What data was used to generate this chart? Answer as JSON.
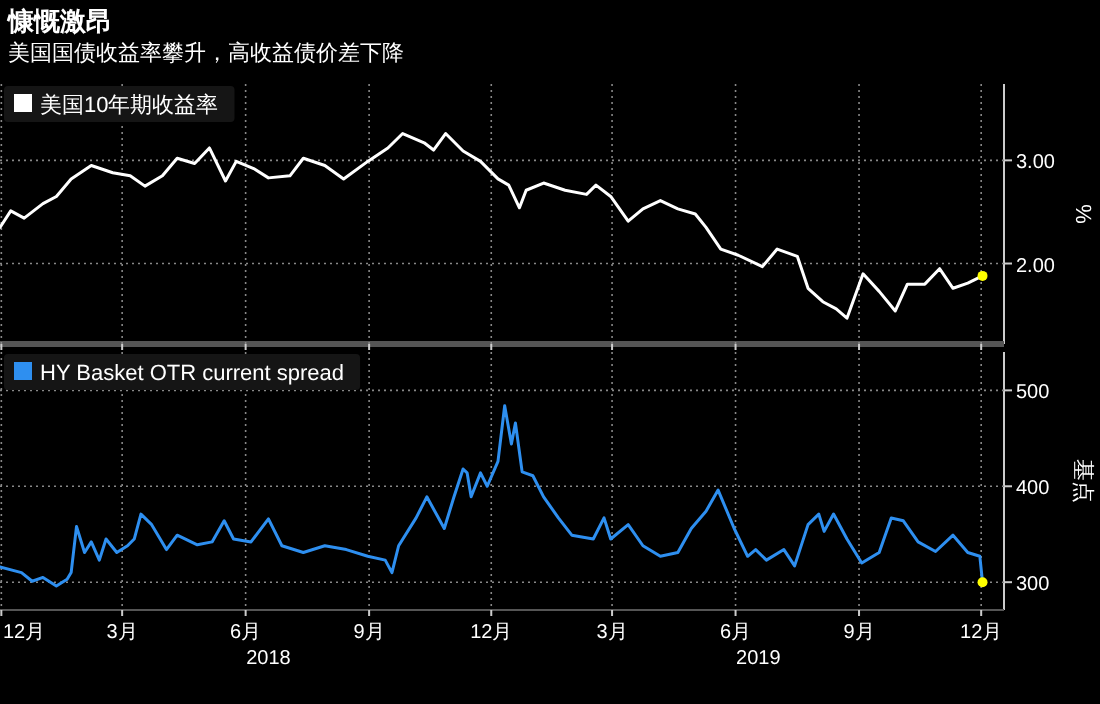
{
  "chart_data": [
    {
      "type": "line",
      "title": "慷慨激昂",
      "subtitle": "美国国债收益率攀升，高收益债价差下降",
      "legend": "top left",
      "grid": true,
      "tick_labels": "y",
      "ylabel": "%",
      "xlim": [
        "2017-12-14",
        "2020-01-01"
      ],
      "xticks": [
        {
          "value": "2017-12-15",
          "label": null
        },
        {
          "value": "2018-03-15",
          "label": null
        },
        {
          "value": "2018-06-15",
          "label": null
        },
        {
          "value": "2018-09-15",
          "label": null
        },
        {
          "value": "2018-12-15",
          "label": null
        },
        {
          "value": "2019-03-15",
          "label": null
        },
        {
          "value": "2019-06-15",
          "label": null
        },
        {
          "value": "2019-09-15",
          "label": null
        },
        {
          "value": "2019-12-15",
          "label": null
        }
      ],
      "ylim": [
        1.22,
        3.74
      ],
      "yticks": [
        {
          "value": 3,
          "label": "3.00"
        },
        {
          "value": 2,
          "label": "2.00"
        }
      ],
      "series": [
        {
          "name": "美国10年期收益率",
          "color": "#ffffff",
          "x": [
            "2017-12-14",
            "2017-12-22",
            "2018-01-01",
            "2018-01-15",
            "2018-01-25",
            "2018-02-05",
            "2018-02-20",
            "2018-03-08",
            "2018-03-21",
            "2018-04-01",
            "2018-04-14",
            "2018-04-25",
            "2018-05-08",
            "2018-05-19",
            "2018-05-31",
            "2018-06-08",
            "2018-06-21",
            "2018-07-02",
            "2018-07-18",
            "2018-07-28",
            "2018-08-13",
            "2018-08-27",
            "2018-09-14",
            "2018-09-29",
            "2018-10-10",
            "2018-10-26",
            "2018-11-02",
            "2018-11-11",
            "2018-11-24",
            "2018-12-07",
            "2018-12-20",
            "2018-12-28",
            "2019-01-05",
            "2019-01-10",
            "2019-01-23",
            "2019-02-08",
            "2019-02-24",
            "2019-03-03",
            "2019-03-14",
            "2019-03-27",
            "2019-04-07",
            "2019-04-20",
            "2019-05-03",
            "2019-05-16",
            "2019-05-24",
            "2019-06-04",
            "2019-06-17",
            "2019-07-05",
            "2019-07-16",
            "2019-07-31",
            "2019-08-08",
            "2019-08-19",
            "2019-08-29",
            "2019-09-06",
            "2019-09-18",
            "2019-09-30",
            "2019-10-12",
            "2019-10-21",
            "2019-11-03",
            "2019-11-14",
            "2019-11-24",
            "2019-12-05",
            "2019-12-16"
          ],
          "values": [
            2.35,
            2.51,
            2.44,
            2.58,
            2.65,
            2.82,
            2.95,
            2.88,
            2.85,
            2.75,
            2.85,
            3.02,
            2.97,
            3.12,
            2.8,
            2.99,
            2.92,
            2.83,
            2.85,
            3.02,
            2.95,
            2.82,
            2.99,
            3.12,
            3.26,
            3.17,
            3.1,
            3.26,
            3.09,
            2.99,
            2.82,
            2.76,
            2.54,
            2.71,
            2.78,
            2.71,
            2.67,
            2.76,
            2.65,
            2.41,
            2.53,
            2.61,
            2.53,
            2.48,
            2.35,
            2.14,
            2.08,
            1.97,
            2.14,
            2.07,
            1.76,
            1.63,
            1.56,
            1.47,
            1.9,
            1.73,
            1.54,
            1.8,
            1.8,
            1.95,
            1.76,
            1.81,
            1.88
          ]
        },
        {
          "type": "scatter",
          "marker": "circle",
          "color": "#ffff00",
          "x": [
            "2019-12-16"
          ],
          "values": [
            1.88
          ]
        }
      ]
    },
    {
      "type": "line",
      "legend": "top left",
      "grid": true,
      "ylabel": "基点",
      "xlim": [
        "2017-12-14",
        "2020-01-01"
      ],
      "xticks": [
        {
          "value": "2017-12-15",
          "label": "12月"
        },
        {
          "value": "2018-03-15",
          "label": "3月"
        },
        {
          "value": "2018-06-15",
          "label": "6月"
        },
        {
          "value": "2018-09-15",
          "label": "9月"
        },
        {
          "value": "2018-12-15",
          "label": "12月"
        },
        {
          "value": "2019-03-15",
          "label": "3月"
        },
        {
          "value": "2019-06-15",
          "label": "6月"
        },
        {
          "value": "2019-09-15",
          "label": "9月"
        },
        {
          "value": "2019-12-15",
          "label": "12月"
        }
      ],
      "x2lim": [
        "2017-12-14",
        "2020-01-01"
      ],
      "x2ticks": [
        {
          "value": "2018-07-02",
          "label": "2018"
        },
        {
          "value": "2019-07-02",
          "label": "2019"
        }
      ],
      "ylim": [
        271,
        540
      ],
      "yticks": [
        300,
        400,
        500
      ],
      "series": [
        {
          "name": "HY Basket OTR current spread",
          "color": "#2e8ff0",
          "x": [
            "2017-12-14",
            "2017-12-30",
            "2018-01-07",
            "2018-01-15",
            "2018-01-25",
            "2018-02-02",
            "2018-02-05",
            "2018-02-09",
            "2018-02-15",
            "2018-02-20",
            "2018-02-26",
            "2018-03-03",
            "2018-03-11",
            "2018-03-19",
            "2018-03-24",
            "2018-03-29",
            "2018-04-06",
            "2018-04-17",
            "2018-04-25",
            "2018-05-10",
            "2018-05-21",
            "2018-05-30",
            "2018-06-06",
            "2018-06-19",
            "2018-07-02",
            "2018-07-12",
            "2018-07-28",
            "2018-08-13",
            "2018-08-29",
            "2018-09-14",
            "2018-09-27",
            "2018-10-02",
            "2018-10-07",
            "2018-10-20",
            "2018-10-28",
            "2018-11-10",
            "2018-11-17",
            "2018-11-24",
            "2018-11-27",
            "2018-11-30",
            "2018-12-07",
            "2018-12-12",
            "2018-12-20",
            "2018-12-25",
            "2018-12-30",
            "2019-01-02",
            "2019-01-07",
            "2019-01-15",
            "2019-01-23",
            "2019-02-03",
            "2019-02-13",
            "2019-03-01",
            "2019-03-09",
            "2019-03-14",
            "2019-03-27",
            "2019-04-07",
            "2019-04-20",
            "2019-05-03",
            "2019-05-13",
            "2019-05-24",
            "2019-06-02",
            "2019-06-14",
            "2019-06-24",
            "2019-06-30",
            "2019-07-08",
            "2019-07-21",
            "2019-07-29",
            "2019-08-08",
            "2019-08-16",
            "2019-08-20",
            "2019-08-27",
            "2019-09-06",
            "2019-09-17",
            "2019-09-30",
            "2019-10-09",
            "2019-10-18",
            "2019-10-29",
            "2019-11-11",
            "2019-11-24",
            "2019-12-05",
            "2019-12-14",
            "2019-12-16"
          ],
          "values": [
            316,
            310,
            301,
            305,
            296,
            303,
            310,
            358,
            331,
            342,
            323,
            345,
            331,
            338,
            345,
            371,
            360,
            334,
            349,
            339,
            342,
            364,
            345,
            342,
            366,
            338,
            331,
            338,
            334,
            327,
            323,
            310,
            338,
            367,
            389,
            356,
            388,
            418,
            414,
            389,
            414,
            400,
            426,
            484,
            444,
            466,
            415,
            411,
            389,
            367,
            349,
            345,
            367,
            345,
            360,
            338,
            327,
            331,
            356,
            374,
            396,
            356,
            327,
            334,
            323,
            334,
            317,
            360,
            371,
            353,
            371,
            345,
            320,
            331,
            367,
            364,
            342,
            332,
            349,
            331,
            327,
            300
          ]
        },
        {
          "type": "scatter",
          "marker": "circle",
          "color": "#ffff00",
          "x": [
            "2019-12-16"
          ],
          "values": [
            300
          ]
        }
      ]
    }
  ]
}
